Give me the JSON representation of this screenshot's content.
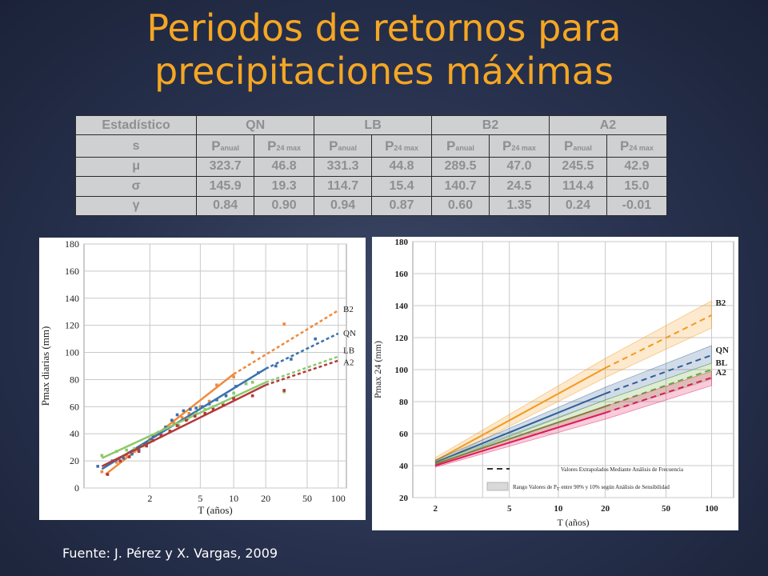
{
  "slide": {
    "title_line1": "Periodos de retornos para",
    "title_line2": "precipitaciones máximas",
    "source": "Fuente: J. Pérez y X. Vargas, 2009"
  },
  "table": {
    "header_label_1": "Estadístico",
    "header_label_2": "s",
    "groups": [
      "QN",
      "LB",
      "B2",
      "A2"
    ],
    "sub_main": [
      "P",
      "P",
      "P",
      "P",
      "P",
      "P",
      "P",
      "P"
    ],
    "sub_small": [
      "anual",
      "24 max",
      "anual",
      "24 max",
      "anual",
      "24 max",
      "anual",
      "24 max"
    ],
    "rows": [
      {
        "symbol": "μ",
        "values": [
          "323.7",
          "46.8",
          "331.3",
          "44.8",
          "289.5",
          "47.0",
          "245.5",
          "42.9"
        ]
      },
      {
        "symbol": "σ",
        "values": [
          "145.9",
          "19.3",
          "114.7",
          "15.4",
          "140.7",
          "24.5",
          "114.4",
          "15.0"
        ]
      },
      {
        "symbol": "γ",
        "values": [
          "0.84",
          "0.90",
          "0.94",
          "0.87",
          "0.60",
          "1.35",
          "0.24",
          "-0.01"
        ]
      }
    ]
  },
  "chart_data": [
    {
      "type": "scatter",
      "xlabel": "T (años)",
      "ylabel": "Pmax diarias (mm)",
      "x_scale": "gumbel",
      "x_ticks": [
        2,
        5,
        10,
        20,
        50,
        100
      ],
      "ylim": [
        0,
        180
      ],
      "y_ticks": [
        0,
        20,
        40,
        60,
        80,
        100,
        120,
        140,
        160,
        180
      ],
      "grid": true,
      "series": [
        {
          "name": "B2",
          "color": "#f08a3c",
          "fit_solid": [
            [
              1.18,
              10
            ],
            [
              10,
              84
            ]
          ],
          "fit_dashed": [
            [
              10,
              84
            ],
            [
              100,
              131
            ]
          ],
          "points": [
            [
              1.15,
              12
            ],
            [
              1.3,
              19
            ],
            [
              1.45,
              24
            ],
            [
              1.6,
              27
            ],
            [
              1.8,
              32
            ],
            [
              2.0,
              36
            ],
            [
              2.3,
              40
            ],
            [
              2.6,
              44
            ],
            [
              3.0,
              48
            ],
            [
              3.5,
              52
            ],
            [
              4.0,
              55
            ],
            [
              5,
              60
            ],
            [
              6,
              64
            ],
            [
              7,
              76
            ],
            [
              10,
              82
            ],
            [
              15,
              100
            ],
            [
              30,
              121
            ]
          ]
        },
        {
          "name": "QN",
          "color": "#3a72ad",
          "fit_solid": [
            [
              1.15,
              14
            ],
            [
              20,
              88
            ]
          ],
          "fit_dashed": [
            [
              20,
              88
            ],
            [
              100,
              114
            ]
          ],
          "points": [
            [
              1.12,
              16
            ],
            [
              1.25,
              20
            ],
            [
              1.4,
              22
            ],
            [
              1.55,
              25
            ],
            [
              1.7,
              28
            ],
            [
              1.9,
              33
            ],
            [
              2.1,
              38
            ],
            [
              2.3,
              41
            ],
            [
              2.6,
              45
            ],
            [
              2.9,
              50
            ],
            [
              3.2,
              54
            ],
            [
              3.6,
              57
            ],
            [
              4.1,
              58
            ],
            [
              4.6,
              59
            ],
            [
              5.2,
              60
            ],
            [
              6,
              62
            ],
            [
              7,
              65
            ],
            [
              8.5,
              68
            ],
            [
              10.5,
              75
            ],
            [
              13,
              77
            ],
            [
              17,
              85
            ],
            [
              25,
              90
            ],
            [
              35,
              95
            ],
            [
              60,
              110
            ]
          ]
        },
        {
          "name": "LB",
          "color": "#8cc96a",
          "fit_solid": [
            [
              1.15,
              22
            ],
            [
              20,
              78
            ]
          ],
          "fit_dashed": [
            [
              20,
              78
            ],
            [
              100,
              97
            ]
          ],
          "points": [
            [
              1.15,
              24
            ],
            [
              1.3,
              27
            ],
            [
              1.45,
              28
            ],
            [
              1.6,
              29
            ],
            [
              1.8,
              31
            ],
            [
              2.0,
              34
            ],
            [
              2.4,
              38
            ],
            [
              2.8,
              42
            ],
            [
              3.3,
              46
            ],
            [
              3.9,
              51
            ],
            [
              4.6,
              55
            ],
            [
              5.5,
              58
            ],
            [
              6.5,
              60
            ],
            [
              8,
              63
            ],
            [
              10,
              70
            ],
            [
              13,
              77
            ],
            [
              15,
              78
            ],
            [
              30,
              71
            ]
          ]
        },
        {
          "name": "A2",
          "color": "#b23a3a",
          "fit_solid": [
            [
              1.15,
              16
            ],
            [
              20,
              76
            ]
          ],
          "fit_dashed": [
            [
              20,
              76
            ],
            [
              100,
              94
            ]
          ],
          "points": [
            [
              1.2,
              10
            ],
            [
              1.35,
              20
            ],
            [
              1.5,
              23
            ],
            [
              1.7,
              27
            ],
            [
              1.9,
              31
            ],
            [
              2.1,
              35
            ],
            [
              2.4,
              39
            ],
            [
              2.8,
              42
            ],
            [
              3.2,
              46
            ],
            [
              3.8,
              50
            ],
            [
              4.5,
              53
            ],
            [
              5.5,
              55
            ],
            [
              6.5,
              58
            ],
            [
              8,
              61
            ],
            [
              10,
              66
            ],
            [
              15,
              68
            ],
            [
              30,
              72
            ]
          ]
        }
      ]
    },
    {
      "type": "line",
      "xlabel": "T (años)",
      "ylabel": "Pmax 24 (mm)",
      "x_scale": "gumbel",
      "x_ticks": [
        2,
        5,
        10,
        20,
        50,
        100
      ],
      "ylim": [
        20,
        180
      ],
      "y_ticks": [
        20,
        40,
        60,
        80,
        100,
        120,
        140,
        160,
        180
      ],
      "grid": true,
      "legend_location": "bottom-right",
      "legend": {
        "dashed_label": "Valores Extrapolados Mediante Análisis de Frecuencia",
        "band_label_pre": "Rango Valores de P",
        "band_label_sub": "T",
        "band_label_post": " entre 90% y 10% según Análisis de Sensibilidad"
      },
      "series": [
        {
          "name": "B2",
          "color": "#f39a1e",
          "x": [
            2,
            20,
            100
          ],
          "y": [
            43,
            101,
            134
          ],
          "band_low": [
            41,
            95,
            126
          ],
          "band_high": [
            45,
            107,
            143
          ]
        },
        {
          "name": "QN",
          "color": "#2f5f94",
          "x": [
            2,
            20,
            100
          ],
          "y": [
            42,
            85,
            109
          ],
          "band_low": [
            40.5,
            81,
            104
          ],
          "band_high": [
            43.5,
            89,
            115
          ]
        },
        {
          "name": "BL",
          "color": "#6aaa3a",
          "x": [
            2,
            20,
            100
          ],
          "y": [
            41,
            77,
            100
          ],
          "band_low": [
            40,
            73,
            94
          ],
          "band_high": [
            42,
            81,
            104
          ]
        },
        {
          "name": "A2",
          "color": "#e0195a",
          "x": [
            2,
            20,
            100
          ],
          "y": [
            40,
            73,
            95
          ],
          "band_low": [
            39,
            69,
            90
          ],
          "band_high": [
            41,
            77,
            99
          ]
        }
      ]
    }
  ]
}
